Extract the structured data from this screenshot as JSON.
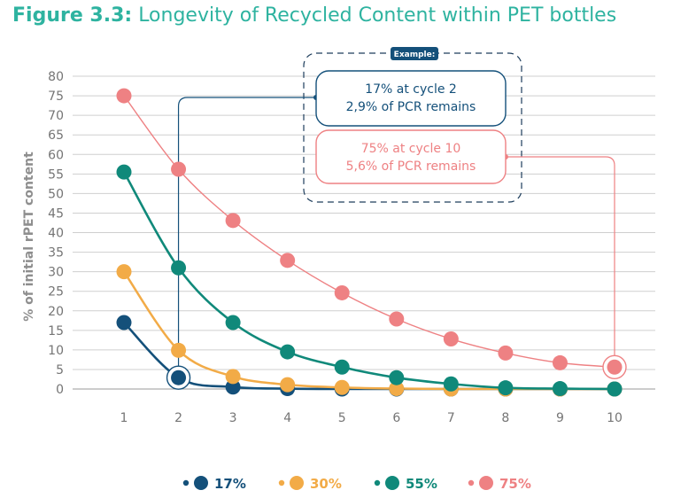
{
  "title": {
    "prefix": "Figure 3.3:",
    "text": "Longevity of Recycled Content within PET bottles"
  },
  "chart_data": {
    "type": "line",
    "title": "Figure 3.3: Longevity of Recycled Content within PET bottles",
    "xlabel": "",
    "ylabel": "% of initial rPET content",
    "x": [
      1,
      2,
      3,
      4,
      5,
      6,
      7,
      8,
      9,
      10
    ],
    "ylim": [
      0,
      80
    ],
    "ytick_step": 5,
    "grid": true,
    "legend_position": "bottom",
    "series": [
      {
        "name": "17%",
        "color": "#14507a",
        "values": [
          17,
          2.9,
          0.5,
          0.1,
          0,
          0,
          0,
          0,
          0,
          0
        ]
      },
      {
        "name": "30%",
        "color": "#f2ab47",
        "values": [
          30,
          9.9,
          3.2,
          1.1,
          0.4,
          0.1,
          0,
          0,
          0,
          0
        ]
      },
      {
        "name": "55%",
        "color": "#10897a",
        "values": [
          55.5,
          31,
          17,
          9.5,
          5.6,
          2.9,
          1.3,
          0.3,
          0.1,
          0
        ]
      },
      {
        "name": "75%",
        "color": "#ee8183",
        "values": [
          75,
          56.2,
          43.1,
          32.9,
          24.6,
          17.9,
          12.8,
          9.2,
          6.7,
          5.6
        ]
      }
    ],
    "example_label": "Example:",
    "annotations": [
      {
        "series": "17%",
        "x": 2,
        "line1": "17% at cycle 2",
        "line2": "2,9% of PCR remains",
        "color": "#14507a"
      },
      {
        "series": "75%",
        "x": 10,
        "line1": "75% at cycle 10",
        "line2": "5,6% of PCR remains",
        "color": "#ee8183"
      }
    ]
  }
}
